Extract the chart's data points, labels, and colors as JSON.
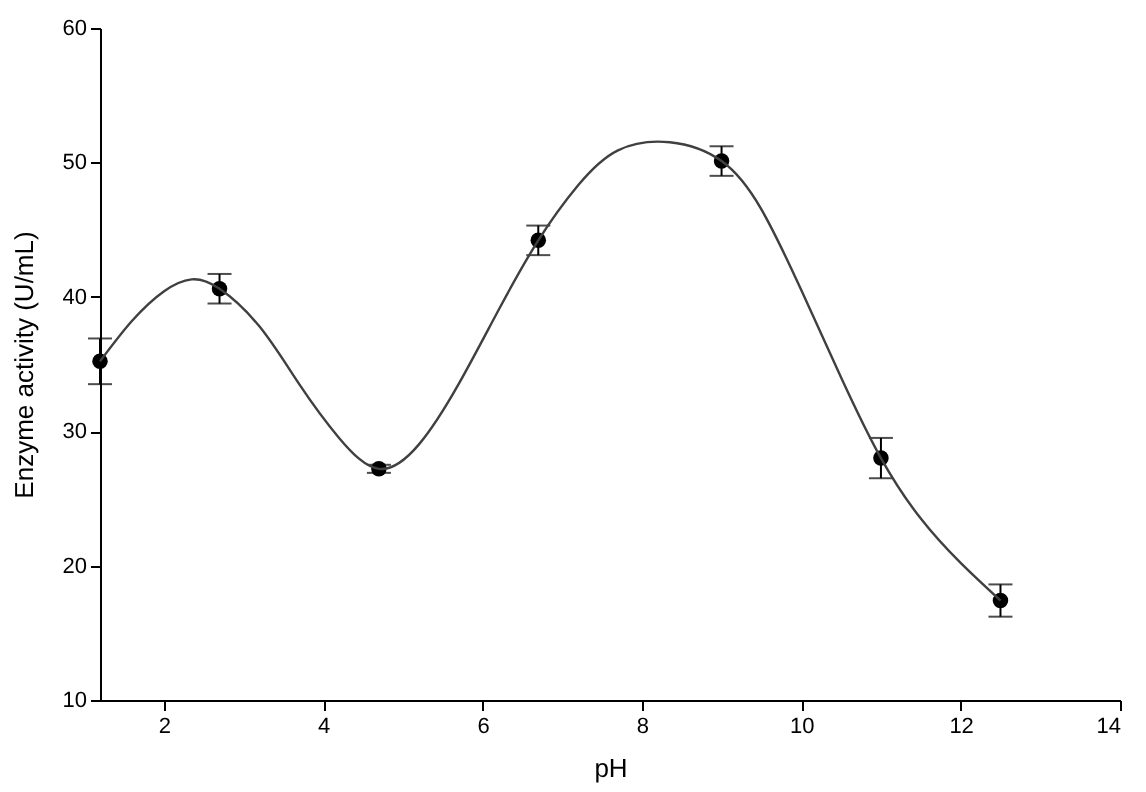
{
  "chart_data": {
    "type": "scatter",
    "xlabel": "pH",
    "ylabel": "Enzyme activity (U/mL)",
    "xlim": [
      1.2,
      14
    ],
    "xticks": [
      2,
      4,
      6,
      8,
      10,
      12,
      14
    ],
    "ylim": [
      10,
      60
    ],
    "yticks": [
      10,
      20,
      30,
      40,
      50,
      60
    ],
    "grid": false,
    "series": [
      {
        "color": "#000000",
        "marker": "circle",
        "x": [
          1.2,
          2.7,
          4.7,
          6.7,
          9.0,
          11.0,
          12.5
        ],
        "values": [
          35.2,
          40.6,
          27.2,
          44.2,
          50.1,
          28.0,
          17.4
        ],
        "errors": [
          1.7,
          1.1,
          0.3,
          1.1,
          1.1,
          1.5,
          1.2
        ]
      },
      {
        "type": "line",
        "color": "#404040",
        "line_style": "solid",
        "marker": "none",
        "x": [
          1.2,
          1.6,
          2.0,
          2.35,
          2.7,
          3.2,
          3.7,
          4.2,
          4.7,
          5.2,
          5.7,
          6.2,
          6.7,
          7.2,
          7.7,
          8.35,
          9.0,
          9.5,
          10.0,
          10.5,
          11.0,
          11.5,
          12.0,
          12.5
        ],
        "values": [
          35.2,
          38.2,
          40.4,
          41.3,
          40.6,
          37.8,
          33.5,
          29.5,
          27.2,
          29.0,
          33.5,
          39.0,
          44.2,
          48.3,
          50.9,
          51.5,
          50.1,
          46.5,
          40.5,
          34.0,
          28.0,
          23.5,
          20.2,
          17.4
        ]
      }
    ]
  }
}
